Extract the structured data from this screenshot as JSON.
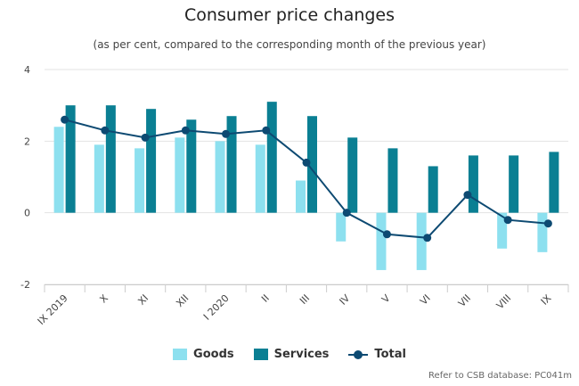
{
  "chart_data": {
    "type": "bar",
    "title": "Consumer price changes",
    "subtitle": "(as per cent, compared to the corresponding month of the previous year)",
    "categories": [
      "IX 2019",
      "X",
      "XI",
      "XII",
      "I 2020",
      "II",
      "III",
      "IV",
      "V",
      "VI",
      "VII",
      "VIII",
      "IX"
    ],
    "series": [
      {
        "name": "Goods",
        "type": "bar",
        "color": "#8de0ef",
        "values": [
          2.4,
          1.9,
          1.8,
          2.1,
          2.0,
          1.9,
          0.9,
          -0.8,
          -1.6,
          -1.6,
          0.0,
          -1.0,
          -1.1
        ]
      },
      {
        "name": "Services",
        "type": "bar",
        "color": "#0a7f93",
        "values": [
          3.0,
          3.0,
          2.9,
          2.6,
          2.7,
          3.1,
          2.7,
          2.1,
          1.8,
          1.3,
          1.6,
          1.6,
          1.7
        ]
      },
      {
        "name": "Total",
        "type": "line",
        "color": "#0d4a72",
        "values": [
          2.6,
          2.3,
          2.1,
          2.3,
          2.2,
          2.3,
          1.4,
          0.0,
          -0.6,
          -0.7,
          0.5,
          -0.2,
          -0.3
        ]
      }
    ],
    "yticks": [
      -2,
      0,
      2,
      4
    ],
    "ylim": [
      -2,
      4
    ],
    "xlabel": "",
    "ylabel": "",
    "grid": true,
    "legend_position": "bottom",
    "credit": "Refer to CSB database: PC041m"
  }
}
